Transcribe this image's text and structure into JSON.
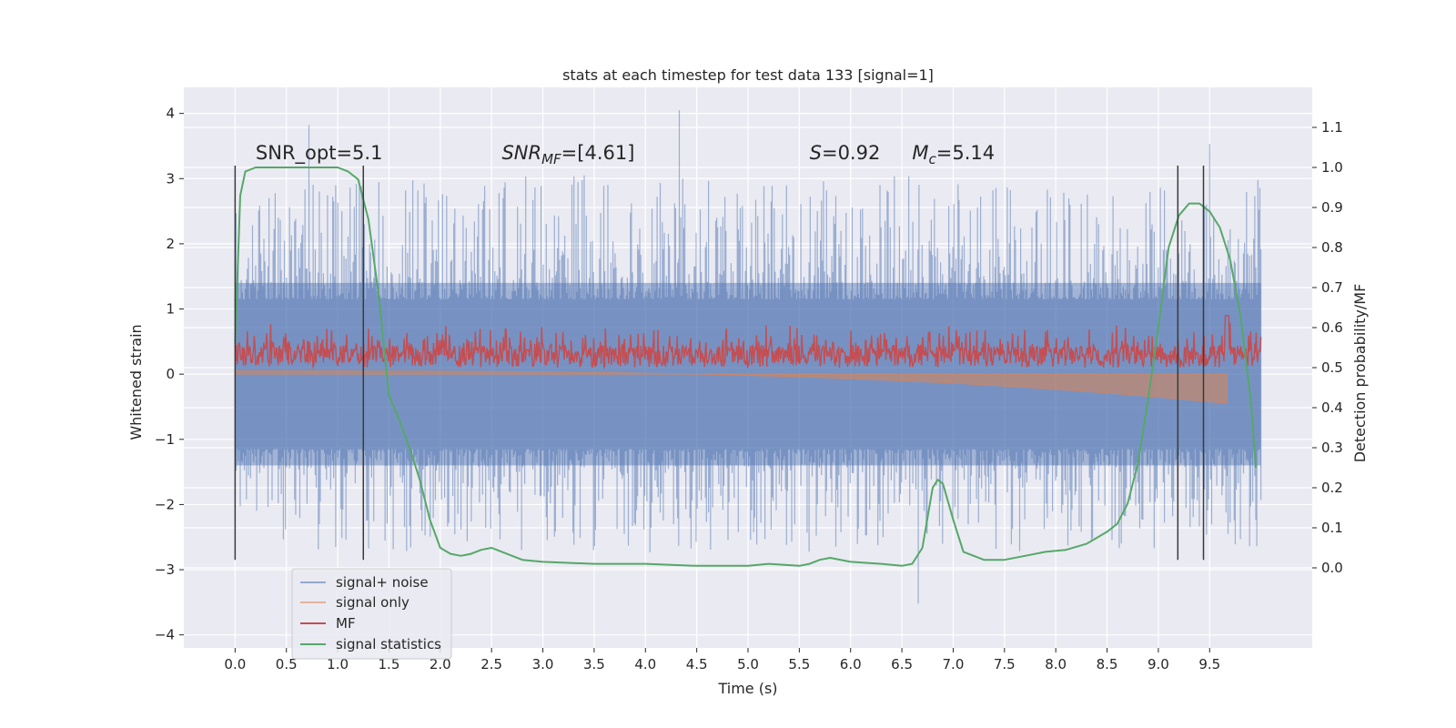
{
  "chart_data": {
    "type": "line",
    "title": "stats at each timestep for test data 133 [signal=1]",
    "xlabel": "Time (s)",
    "ylabel_left": "Whitened strain",
    "ylabel_right": "Detection probability/MF",
    "xlim": [
      -0.5,
      10.5
    ],
    "ylim_left": [
      -4.2,
      4.4
    ],
    "ylim_right": [
      -0.2,
      1.2
    ],
    "x_ticks": [
      0.0,
      0.5,
      1.0,
      1.5,
      2.0,
      2.5,
      3.0,
      3.5,
      4.0,
      4.5,
      5.0,
      5.5,
      6.0,
      6.5,
      7.0,
      7.5,
      8.0,
      8.5,
      9.0,
      9.5
    ],
    "x_tick_labels": [
      "0.0",
      "0.5",
      "1.0",
      "1.5",
      "2.0",
      "2.5",
      "3.0",
      "3.5",
      "4.0",
      "4.5",
      "5.0",
      "5.5",
      "6.0",
      "6.5",
      "7.0",
      "7.5",
      "8.0",
      "8.5",
      "9.0",
      "9.5"
    ],
    "y_ticks_left": [
      -4,
      -3,
      -2,
      -1,
      0,
      1,
      2,
      3,
      4
    ],
    "y_tick_labels_left": [
      "−4",
      "−3",
      "−2",
      "−1",
      "0",
      "1",
      "2",
      "3",
      "4"
    ],
    "y_ticks_right": [
      0.0,
      0.1,
      0.2,
      0.3,
      0.4,
      0.5,
      0.6,
      0.7,
      0.8,
      0.9,
      1.0,
      1.1
    ],
    "y_tick_labels_right": [
      "0.0",
      "0.1",
      "0.2",
      "0.3",
      "0.4",
      "0.5",
      "0.6",
      "0.7",
      "0.8",
      "0.9",
      "1.0",
      "1.1"
    ],
    "grid": true,
    "legend_position": "lower-left",
    "annotations": [
      {
        "text": "SNR_opt=5.1",
        "x": 0.2,
        "y_right": 1.02
      },
      {
        "text": "SNR",
        "sub": "MF",
        "after": "=[4.61]",
        "x": 2.6,
        "y_right": 1.02
      },
      {
        "text": "S",
        "after": "=0.92",
        "x": 5.6,
        "y_right": 1.02
      },
      {
        "text": "M",
        "sub": "c",
        "after": "=5.14",
        "x": 6.6,
        "y_right": 1.02
      }
    ],
    "vertical_lines": [
      0.0,
      1.25,
      9.19,
      9.44
    ],
    "vertical_line_range_left": [
      -2.85,
      3.2
    ],
    "series": [
      {
        "name": "signal+ noise",
        "color": "#4c72b0",
        "axis": "left",
        "t_range": [
          0.0,
          10.0
        ],
        "envelope": 1.4,
        "spike_max": 3.8,
        "spike_min": -3.5,
        "noted_spikes": [
          [
            0.72,
            3.82
          ],
          [
            4.33,
            4.05
          ],
          [
            9.5,
            3.53
          ],
          [
            6.66,
            -3.52
          ]
        ]
      },
      {
        "name": "signal only",
        "color": "#dd8452",
        "axis": "left",
        "t_range": [
          0.0,
          9.67
        ],
        "start_amp": 0.05,
        "end_amp": -0.45
      },
      {
        "name": "MF",
        "color": "#c44e52",
        "axis": "right",
        "t_range": [
          0.0,
          10.0
        ],
        "baseline": 0.5,
        "max": 0.63,
        "peak": [
          9.67,
          0.63
        ]
      },
      {
        "name": "signal statistics",
        "color": "#55a868",
        "axis": "right",
        "x": [
          0.0,
          0.05,
          0.1,
          0.2,
          0.3,
          0.5,
          0.8,
          1.0,
          1.1,
          1.2,
          1.3,
          1.4,
          1.5,
          1.6,
          1.7,
          1.8,
          1.9,
          2.0,
          2.1,
          2.2,
          2.3,
          2.4,
          2.5,
          2.6,
          2.8,
          3.0,
          3.5,
          4.0,
          4.5,
          5.0,
          5.2,
          5.5,
          5.6,
          5.7,
          5.8,
          6.0,
          6.3,
          6.5,
          6.6,
          6.7,
          6.8,
          6.85,
          6.9,
          7.0,
          7.1,
          7.3,
          7.5,
          7.7,
          7.9,
          8.1,
          8.3,
          8.5,
          8.6,
          8.7,
          8.8,
          8.9,
          9.0,
          9.1,
          9.2,
          9.3,
          9.4,
          9.5,
          9.6,
          9.7,
          9.8,
          9.9,
          9.95
        ],
        "y": [
          0.56,
          0.93,
          0.99,
          1.0,
          1.0,
          1.0,
          1.0,
          1.0,
          0.99,
          0.97,
          0.87,
          0.68,
          0.43,
          0.37,
          0.3,
          0.22,
          0.12,
          0.05,
          0.035,
          0.03,
          0.035,
          0.045,
          0.05,
          0.04,
          0.02,
          0.015,
          0.01,
          0.01,
          0.005,
          0.005,
          0.01,
          0.005,
          0.01,
          0.02,
          0.025,
          0.015,
          0.01,
          0.005,
          0.01,
          0.05,
          0.2,
          0.22,
          0.21,
          0.12,
          0.04,
          0.02,
          0.02,
          0.03,
          0.04,
          0.045,
          0.06,
          0.09,
          0.11,
          0.16,
          0.26,
          0.42,
          0.6,
          0.8,
          0.88,
          0.91,
          0.91,
          0.89,
          0.85,
          0.77,
          0.63,
          0.42,
          0.25
        ]
      }
    ]
  }
}
